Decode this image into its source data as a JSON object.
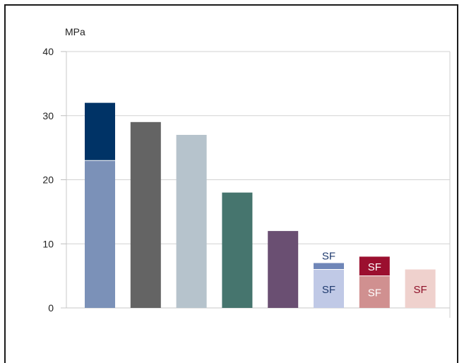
{
  "chart_data": {
    "type": "bar",
    "title": "",
    "xlabel": "",
    "ylabel": "MPa",
    "ylim": [
      0,
      40
    ],
    "yticks": [
      "0",
      "10",
      "20",
      "30",
      "40"
    ],
    "grid": true,
    "bars": [
      {
        "segments": [
          {
            "value": 23,
            "color": "#7b91b8",
            "label": ""
          },
          {
            "value": 9,
            "color": "#003366",
            "label": ""
          }
        ]
      },
      {
        "segments": [
          {
            "value": 29,
            "color": "#646464",
            "label": ""
          }
        ]
      },
      {
        "segments": [
          {
            "value": 27,
            "color": "#b6c3cc",
            "label": ""
          }
        ]
      },
      {
        "segments": [
          {
            "value": 18,
            "color": "#46756e",
            "label": ""
          }
        ]
      },
      {
        "segments": [
          {
            "value": 12,
            "color": "#6a4f72",
            "label": ""
          }
        ]
      },
      {
        "segments": [
          {
            "value": 6,
            "color": "#c0c9e6",
            "label": "SF",
            "label_color": "#1f3a6e"
          },
          {
            "value": 1,
            "color": "#6f86b8",
            "label": "",
            "label_color": "#1f3a6e"
          }
        ],
        "above_label": "SF",
        "above_label_color": "#1f3a6e"
      },
      {
        "segments": [
          {
            "value": 5,
            "color": "#d09090",
            "label": "SF",
            "label_color": "#ffffff"
          },
          {
            "value": 3,
            "color": "#9b0f2f",
            "label": "SF",
            "label_color": "#ffffff"
          }
        ]
      },
      {
        "segments": [
          {
            "value": 6,
            "color": "#efd1cd",
            "label": "SF",
            "label_color": "#8e1028"
          }
        ]
      }
    ]
  }
}
